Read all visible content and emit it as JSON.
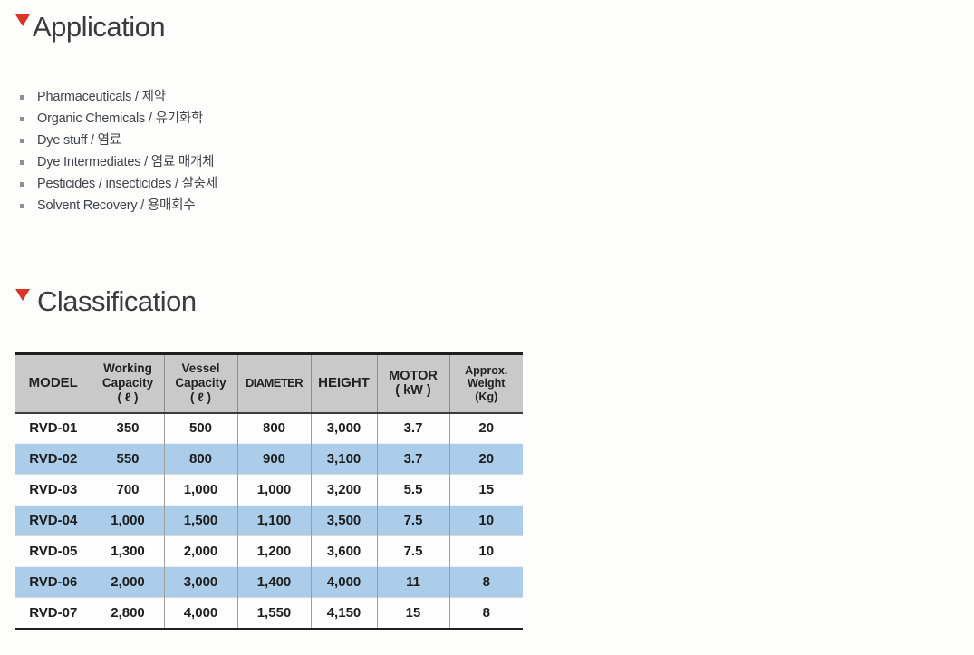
{
  "page": {
    "background_color": "#fdfdfc",
    "accent_red": "#d93527",
    "highlight_blue": "#abcdea",
    "header_gray": "#c9c9c9"
  },
  "application": {
    "title": "Application",
    "marker_icon": "red-triangle-down",
    "items": [
      "Pharmaceuticals / 제약",
      "Organic Chemicals / 유기화학",
      "Dye stuff / 염료",
      "Dye Intermediates / 염료 매개체",
      "Pesticides / insecticides / 살충제",
      "Solvent Recovery / 용매회수"
    ]
  },
  "classification": {
    "title": "Classification",
    "marker_icon": "red-triangle-down",
    "table": {
      "headers": [
        "MODEL",
        "Working\nCapacity\n( ℓ )",
        "Vessel\nCapacity\n( ℓ )",
        "DIAMETER",
        "HEIGHT",
        "MOTOR\n( kW )",
        "Approx.\nWeight\n(Kg)"
      ],
      "rows": [
        {
          "highlight": false,
          "cells": [
            "RVD-01",
            "350",
            "500",
            "800",
            "3,000",
            "3.7",
            "20"
          ]
        },
        {
          "highlight": true,
          "cells": [
            "RVD-02",
            "550",
            "800",
            "900",
            "3,100",
            "3.7",
            "20"
          ]
        },
        {
          "highlight": false,
          "cells": [
            "RVD-03",
            "700",
            "1,000",
            "1,000",
            "3,200",
            "5.5",
            "15"
          ]
        },
        {
          "highlight": true,
          "cells": [
            "RVD-04",
            "1,000",
            "1,500",
            "1,100",
            "3,500",
            "7.5",
            "10"
          ]
        },
        {
          "highlight": false,
          "cells": [
            "RVD-05",
            "1,300",
            "2,000",
            "1,200",
            "3,600",
            "7.5",
            "10"
          ]
        },
        {
          "highlight": true,
          "cells": [
            "RVD-06",
            "2,000",
            "3,000",
            "1,400",
            "4,000",
            "11",
            "8"
          ]
        },
        {
          "highlight": false,
          "cells": [
            "RVD-07",
            "2,800",
            "4,000",
            "1,550",
            "4,150",
            "15",
            "8"
          ]
        }
      ]
    }
  }
}
